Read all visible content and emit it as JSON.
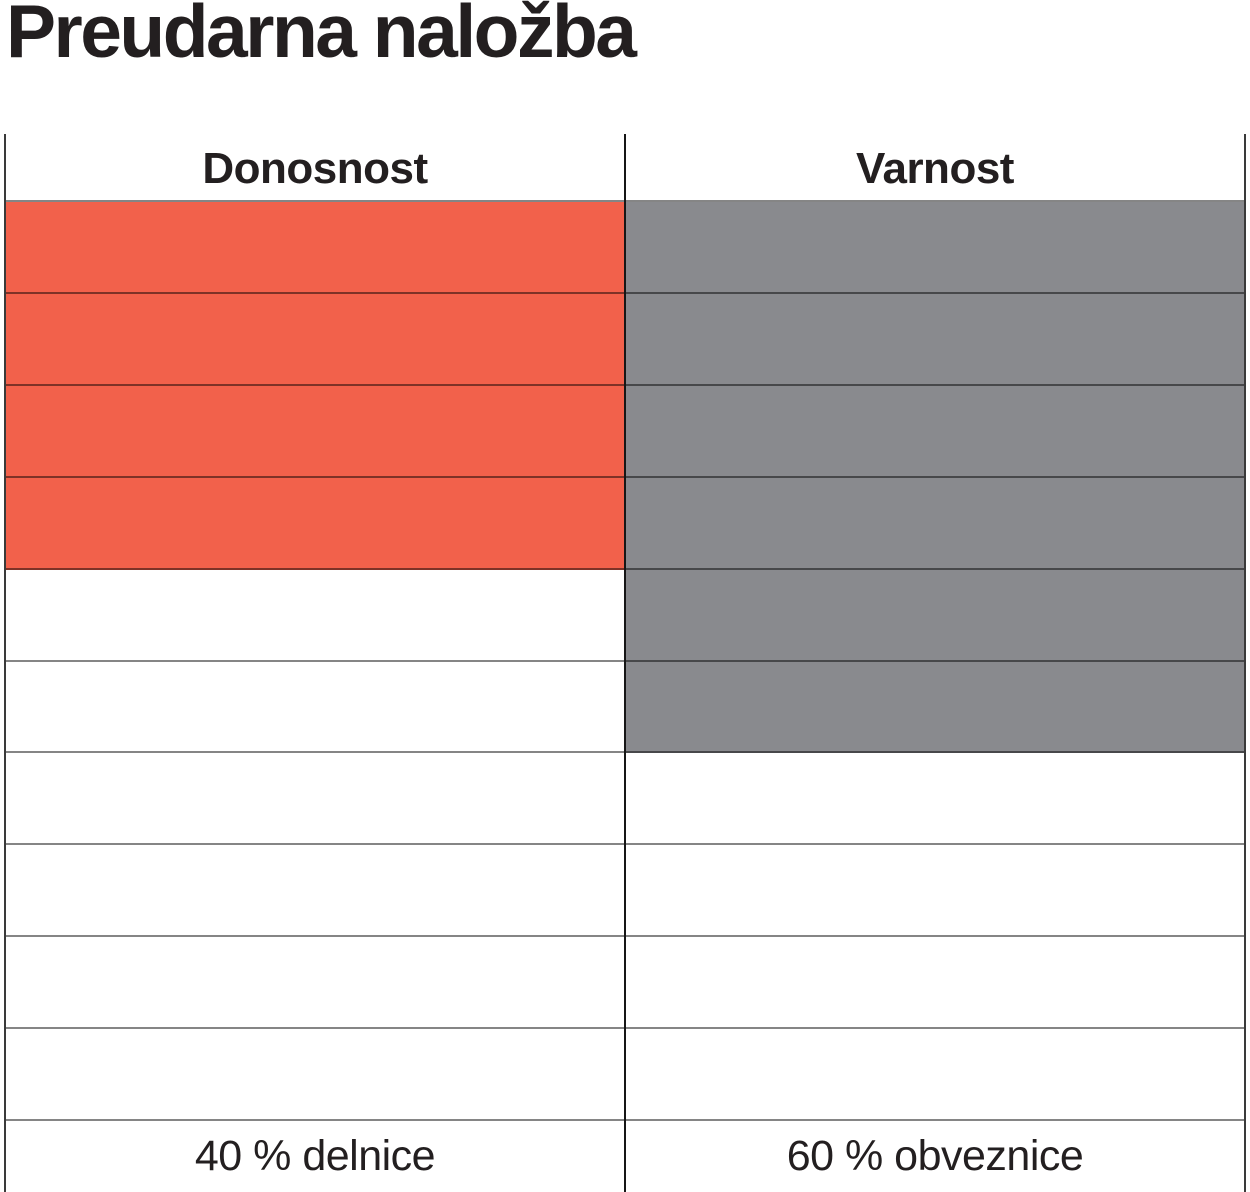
{
  "title": "Preudarna naložba",
  "colors": {
    "fill_red": "#f2614b",
    "fill_gray": "#898a8e",
    "text": "#231f20",
    "gridline": "rgba(0,0,0,0.48)",
    "divider": "#161616",
    "outer_border": "#3a3a3a"
  },
  "chart_data": {
    "type": "table",
    "title": "Preudarna naložba",
    "total_rows": 10,
    "legend_position": "none",
    "columns": [
      {
        "header": "Donosnost",
        "filled_rows": 4,
        "value_percent": 40,
        "fill_color": "#f2614b",
        "footer_label": "40 % delnice"
      },
      {
        "header": "Varnost",
        "filled_rows": 6,
        "value_percent": 60,
        "fill_color": "#898a8e",
        "footer_label": "60 % obveznice"
      }
    ]
  }
}
